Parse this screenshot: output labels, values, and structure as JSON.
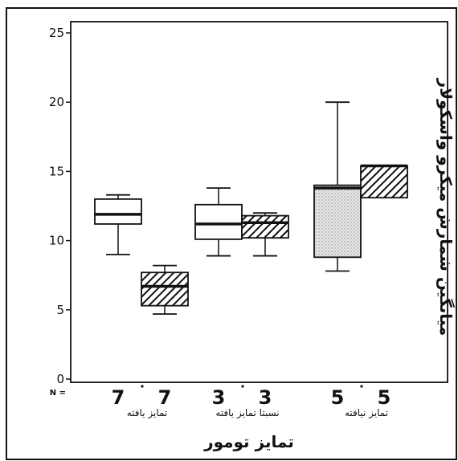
{
  "chart_data": {
    "type": "boxplot",
    "title": "",
    "xlabel": "تمایز تومور",
    "ylabel": "میانگین شمارش میکرو واسکولار",
    "ylim": [
      0,
      25
    ],
    "yticks": [
      0,
      5,
      10,
      15,
      20,
      25
    ],
    "n_label": "N =",
    "categories": [
      "تمایز یافته",
      "نسبتا تمایز یافته",
      "تمایز نیافته"
    ],
    "groups": [
      {
        "category": "تمایز یافته",
        "boxes": [
          {
            "count": "7",
            "style": "plain",
            "min": 9.0,
            "q1": 11.2,
            "median": 11.9,
            "q3": 13.0,
            "max": 13.3
          },
          {
            "count": "7",
            "style": "hatched",
            "min": 4.7,
            "q1": 5.3,
            "median": 6.7,
            "q3": 7.7,
            "max": 8.2
          }
        ]
      },
      {
        "category": "نسبتا تمایز یافته",
        "boxes": [
          {
            "count": "3",
            "style": "plain",
            "min": 8.9,
            "q1": 10.1,
            "median": 11.2,
            "q3": 12.6,
            "max": 13.8
          },
          {
            "count": "3",
            "style": "hatched",
            "min": 8.9,
            "q1": 10.2,
            "median": 11.3,
            "q3": 11.8,
            "max": 12.0
          }
        ]
      },
      {
        "category": "تمایز نیافته",
        "boxes": [
          {
            "count": "5",
            "style": "dotted",
            "min": 7.8,
            "q1": 8.8,
            "median": 13.8,
            "q3": 14.0,
            "max": 20.0
          },
          {
            "count": "5",
            "style": "hatched",
            "min": 13.1,
            "q1": 13.1,
            "median": 15.4,
            "q3": 15.4,
            "max": 15.4
          }
        ]
      }
    ],
    "grid": false,
    "legend": "none"
  }
}
